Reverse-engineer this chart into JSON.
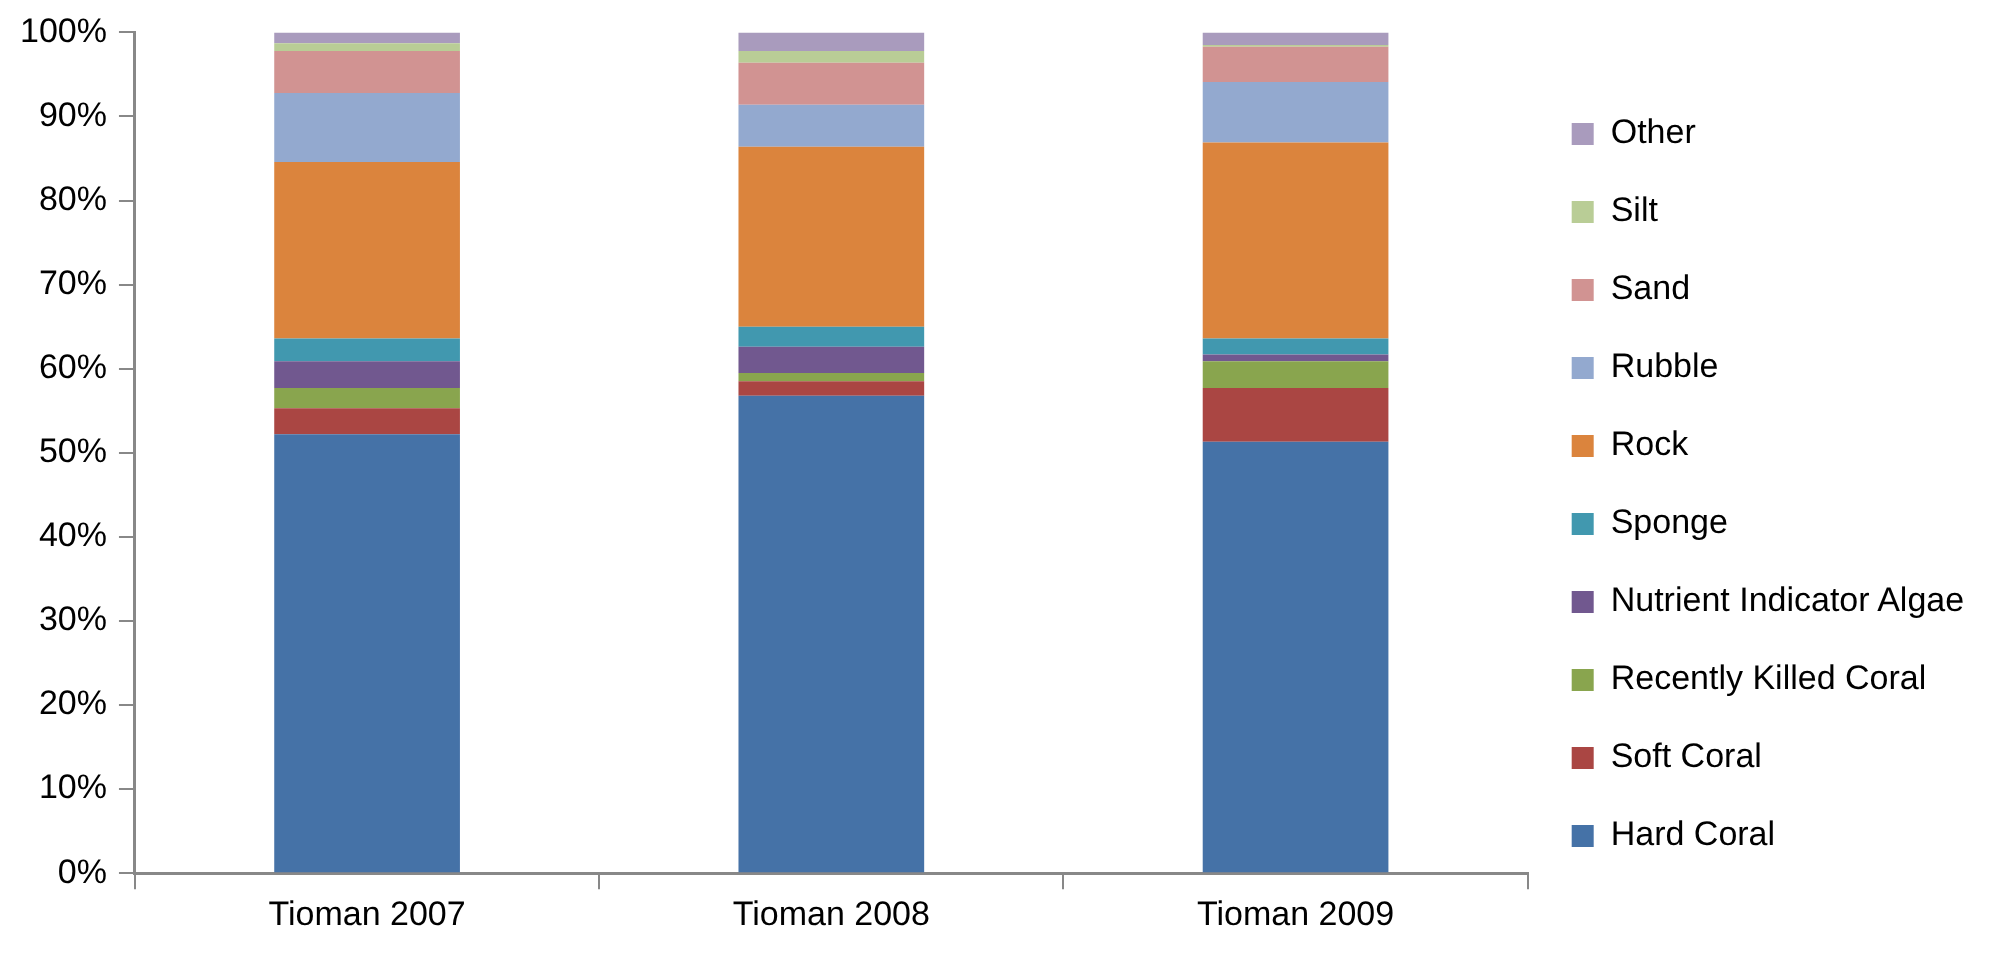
{
  "chart_data": {
    "type": "bar",
    "stacked": true,
    "legend": "right",
    "grid": false,
    "categories": [
      "Tioman 2007",
      "Tioman 2008",
      "Tioman 2009"
    ],
    "ylim": [
      0,
      100
    ],
    "yticks": [
      {
        "value": 0,
        "label": "0%"
      },
      {
        "value": 10,
        "label": "10%"
      },
      {
        "value": 20,
        "label": "20%"
      },
      {
        "value": 30,
        "label": "30%"
      },
      {
        "value": 40,
        "label": "40%"
      },
      {
        "value": 50,
        "label": "50%"
      },
      {
        "value": 60,
        "label": "60%"
      },
      {
        "value": 70,
        "label": "70%"
      },
      {
        "value": 80,
        "label": "80%"
      },
      {
        "value": 90,
        "label": "90%"
      },
      {
        "value": 100,
        "label": "100%"
      }
    ],
    "series": [
      {
        "name": "Hard Coral",
        "color": "#4572a7",
        "values": [
          52.2,
          56.8,
          51.3
        ]
      },
      {
        "name": "Soft Coral",
        "color": "#aa4643",
        "values": [
          3.1,
          1.7,
          6.4
        ]
      },
      {
        "name": "Recently Killed Coral",
        "color": "#89a54e",
        "values": [
          2.4,
          1.0,
          3.2
        ]
      },
      {
        "name": "Nutrient Indicator Algae",
        "color": "#71588f",
        "values": [
          3.2,
          3.1,
          0.8
        ]
      },
      {
        "name": "Sponge",
        "color": "#4198af",
        "values": [
          2.7,
          2.4,
          1.9
        ]
      },
      {
        "name": "Rock",
        "color": "#db843d",
        "values": [
          21.0,
          21.4,
          23.3
        ]
      },
      {
        "name": "Rubble",
        "color": "#93a9cf",
        "values": [
          8.2,
          5.0,
          7.2
        ]
      },
      {
        "name": "Sand",
        "color": "#d19392",
        "values": [
          5.0,
          5.0,
          4.2
        ]
      },
      {
        "name": "Silt",
        "color": "#b9cd96",
        "values": [
          0.9,
          1.4,
          0.2
        ]
      },
      {
        "name": "Other",
        "color": "#a99bbd",
        "values": [
          1.3,
          2.2,
          1.5
        ]
      }
    ]
  }
}
